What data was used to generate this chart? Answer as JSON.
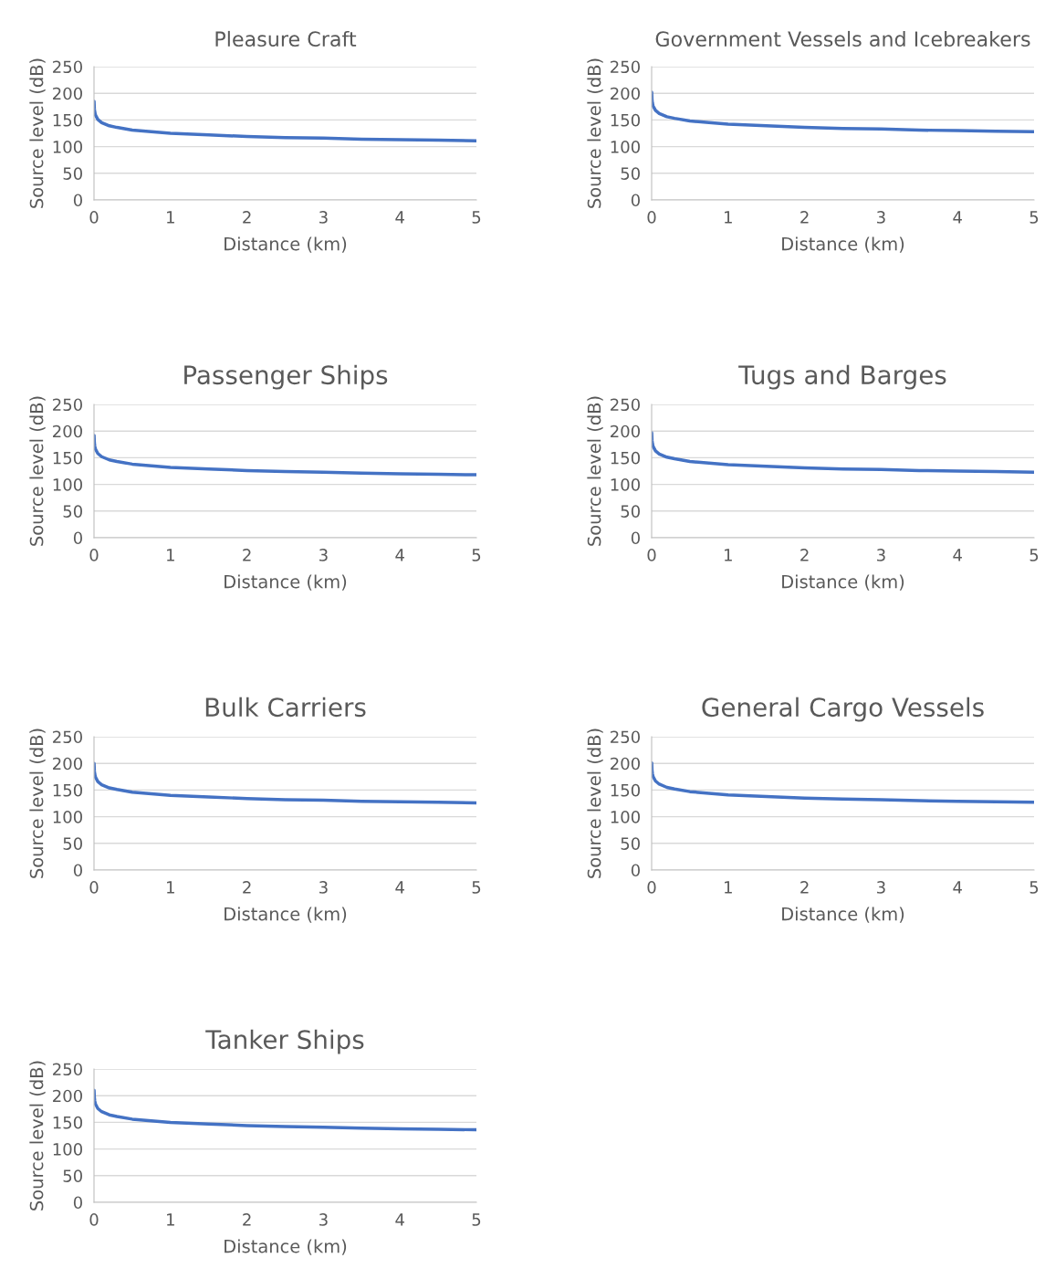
{
  "chart_data": [
    {
      "type": "line",
      "title": "Pleasure Craft",
      "xlabel": "Distance (km)",
      "ylabel": "Source level (dB)",
      "x": [
        0.001,
        0.005,
        0.01,
        0.02,
        0.05,
        0.1,
        0.2,
        0.3,
        0.5,
        0.75,
        1,
        1.5,
        2,
        2.5,
        3,
        3.5,
        4,
        4.5,
        5
      ],
      "series": [
        {
          "color": "#4472c4",
          "values": [
            185,
            171,
            165,
            159,
            151,
            145,
            139,
            136,
            131,
            128,
            125,
            122,
            119,
            117,
            116,
            114,
            113,
            112,
            111
          ]
        }
      ],
      "xlim": [
        0,
        5
      ],
      "xticks": [
        0,
        1,
        2,
        3,
        4,
        5
      ],
      "ylim": [
        0,
        250
      ],
      "yticks": [
        0,
        50,
        100,
        150,
        200,
        250
      ],
      "grid": "y"
    },
    {
      "type": "line",
      "title": "Government Vessels and Icebreakers",
      "xlabel": "Distance (km)",
      "ylabel": "Source level (dB)",
      "x": [
        0.001,
        0.005,
        0.01,
        0.02,
        0.05,
        0.1,
        0.2,
        0.3,
        0.5,
        0.75,
        1,
        1.5,
        2,
        2.5,
        3,
        3.5,
        4,
        4.5,
        5
      ],
      "series": [
        {
          "color": "#4472c4",
          "values": [
            202,
            188,
            182,
            176,
            168,
            162,
            156,
            153,
            148,
            145,
            142,
            139,
            136,
            134,
            133,
            131,
            130,
            129,
            128
          ]
        }
      ],
      "xlim": [
        0,
        5
      ],
      "xticks": [
        0,
        1,
        2,
        3,
        4,
        5
      ],
      "ylim": [
        0,
        250
      ],
      "yticks": [
        0,
        50,
        100,
        150,
        200,
        250
      ],
      "grid": "y"
    },
    {
      "type": "line",
      "title": "Passenger Ships",
      "xlabel": "Distance (km)",
      "ylabel": "Source level (dB)",
      "x": [
        0.001,
        0.005,
        0.01,
        0.02,
        0.05,
        0.1,
        0.2,
        0.3,
        0.5,
        0.75,
        1,
        1.5,
        2,
        2.5,
        3,
        3.5,
        4,
        4.5,
        5
      ],
      "series": [
        {
          "color": "#4472c4",
          "values": [
            192,
            178,
            172,
            166,
            158,
            152,
            146,
            143,
            138,
            135,
            132,
            129,
            126,
            124,
            123,
            121,
            120,
            119,
            118
          ]
        }
      ],
      "xlim": [
        0,
        5
      ],
      "xticks": [
        0,
        1,
        2,
        3,
        4,
        5
      ],
      "ylim": [
        0,
        250
      ],
      "yticks": [
        0,
        50,
        100,
        150,
        200,
        250
      ],
      "grid": "y"
    },
    {
      "type": "line",
      "title": "Tugs and Barges",
      "xlabel": "Distance (km)",
      "ylabel": "Source level (dB)",
      "x": [
        0.001,
        0.005,
        0.01,
        0.02,
        0.05,
        0.1,
        0.2,
        0.3,
        0.5,
        0.75,
        1,
        1.5,
        2,
        2.5,
        3,
        3.5,
        4,
        4.5,
        5
      ],
      "series": [
        {
          "color": "#4472c4",
          "values": [
            197,
            183,
            177,
            171,
            163,
            157,
            151,
            148,
            143,
            140,
            137,
            134,
            131,
            129,
            128,
            126,
            125,
            124,
            123
          ]
        }
      ],
      "xlim": [
        0,
        5
      ],
      "xticks": [
        0,
        1,
        2,
        3,
        4,
        5
      ],
      "ylim": [
        0,
        250
      ],
      "yticks": [
        0,
        50,
        100,
        150,
        200,
        250
      ],
      "grid": "y"
    },
    {
      "type": "line",
      "title": "Bulk Carriers",
      "xlabel": "Distance (km)",
      "ylabel": "Source level (dB)",
      "x": [
        0.001,
        0.005,
        0.01,
        0.02,
        0.05,
        0.1,
        0.2,
        0.3,
        0.5,
        0.75,
        1,
        1.5,
        2,
        2.5,
        3,
        3.5,
        4,
        4.5,
        5
      ],
      "series": [
        {
          "color": "#4472c4",
          "values": [
            200,
            186,
            180,
            174,
            166,
            160,
            154,
            151,
            146,
            143,
            140,
            137,
            134,
            132,
            131,
            129,
            128,
            127,
            126
          ]
        }
      ],
      "xlim": [
        0,
        5
      ],
      "xticks": [
        0,
        1,
        2,
        3,
        4,
        5
      ],
      "ylim": [
        0,
        250
      ],
      "yticks": [
        0,
        50,
        100,
        150,
        200,
        250
      ],
      "grid": "y"
    },
    {
      "type": "line",
      "title": "General Cargo Vessels",
      "xlabel": "Distance (km)",
      "ylabel": "Source level (dB)",
      "x": [
        0.001,
        0.005,
        0.01,
        0.02,
        0.05,
        0.1,
        0.2,
        0.3,
        0.5,
        0.75,
        1,
        1.5,
        2,
        2.5,
        3,
        3.5,
        4,
        4.5,
        5
      ],
      "series": [
        {
          "color": "#4472c4",
          "values": [
            201,
            187,
            181,
            175,
            167,
            161,
            155,
            152,
            147,
            144,
            141,
            138,
            135,
            133,
            132,
            130,
            129,
            128,
            127
          ]
        }
      ],
      "xlim": [
        0,
        5
      ],
      "xticks": [
        0,
        1,
        2,
        3,
        4,
        5
      ],
      "ylim": [
        0,
        250
      ],
      "yticks": [
        0,
        50,
        100,
        150,
        200,
        250
      ],
      "grid": "y"
    },
    {
      "type": "line",
      "title": "Tanker Ships",
      "xlabel": "Distance (km)",
      "ylabel": "Source level (dB)",
      "x": [
        0.001,
        0.005,
        0.01,
        0.02,
        0.05,
        0.1,
        0.2,
        0.3,
        0.5,
        0.75,
        1,
        1.5,
        2,
        2.5,
        3,
        3.5,
        4,
        4.5,
        5
      ],
      "series": [
        {
          "color": "#4472c4",
          "values": [
            210,
            196,
            190,
            184,
            176,
            170,
            164,
            161,
            156,
            153,
            150,
            147,
            144,
            142,
            141,
            139,
            138,
            137,
            136
          ]
        }
      ],
      "xlim": [
        0,
        5
      ],
      "xticks": [
        0,
        1,
        2,
        3,
        4,
        5
      ],
      "ylim": [
        0,
        250
      ],
      "yticks": [
        0,
        50,
        100,
        150,
        200,
        250
      ],
      "grid": "y"
    }
  ]
}
